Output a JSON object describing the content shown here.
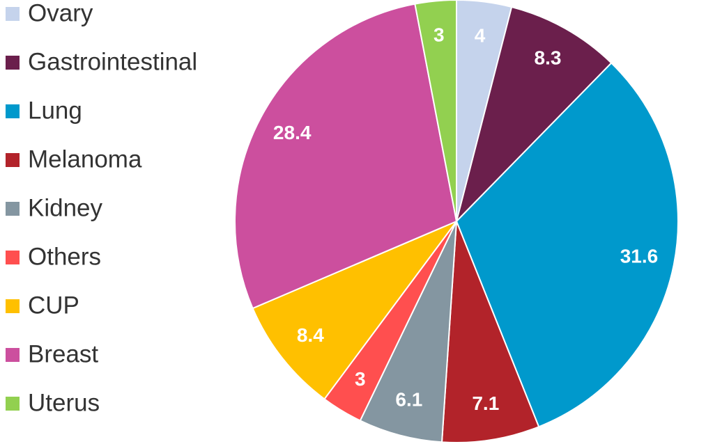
{
  "chart_data": {
    "type": "pie",
    "categories": [
      "Ovary",
      "Gastrointestinal",
      "Lung",
      "Melanoma",
      "Kidney",
      "Others",
      "CUP",
      "Breast",
      "Uterus"
    ],
    "values": [
      4,
      8.3,
      31.6,
      7.1,
      6.1,
      3,
      8.4,
      28.4,
      3
    ],
    "colors": [
      "#c5d3ec",
      "#6b1f4c",
      "#0099cc",
      "#b2232a",
      "#8496a1",
      "#ff4f4f",
      "#ffc000",
      "#cc4f9e",
      "#92d050"
    ],
    "legend": "left"
  }
}
